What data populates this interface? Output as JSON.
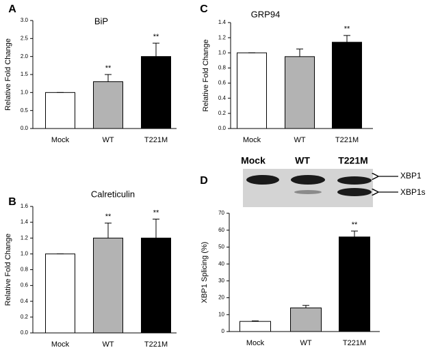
{
  "chart_data": [
    {
      "type": "bar",
      "panel_label": "A",
      "title": "BiP",
      "y_label": "Relative Fold Change",
      "categories": [
        "Mock",
        "WT",
        "T221M"
      ],
      "values": [
        1.0,
        1.3,
        2.0
      ],
      "errors": [
        0,
        0.2,
        0.37
      ],
      "annotations": [
        null,
        "**",
        "**"
      ],
      "colors": [
        "#ffffff",
        "#b3b3b3",
        "#000000"
      ],
      "ylim": [
        0,
        3.0
      ],
      "yticks": [
        {
          "value": 0,
          "label": "0.0"
        },
        {
          "value": 0.5,
          "label": "0.5"
        },
        {
          "value": 1.0,
          "label": "1.0"
        },
        {
          "value": 1.5,
          "label": "1.5"
        },
        {
          "value": 2.0,
          "label": "2.0"
        },
        {
          "value": 2.5,
          "label": "2.5"
        },
        {
          "value": 3.0,
          "label": "3.0"
        }
      ]
    },
    {
      "type": "bar",
      "panel_label": "B",
      "title": "Calreticulin",
      "y_label": "Relative Fold Change",
      "categories": [
        "Mock",
        "WT",
        "T221M"
      ],
      "values": [
        1.0,
        1.2,
        1.2
      ],
      "errors": [
        0,
        0.19,
        0.24
      ],
      "annotations": [
        null,
        "**",
        "**"
      ],
      "colors": [
        "#ffffff",
        "#b3b3b3",
        "#000000"
      ],
      "ylim": [
        0,
        1.6
      ],
      "yticks": [
        {
          "value": 0,
          "label": "0.0"
        },
        0.2,
        0.4,
        0.6,
        0.8,
        {
          "value": 1.0,
          "label": "1.0"
        },
        1.2,
        1.4,
        1.6
      ]
    },
    {
      "type": "bar",
      "panel_label": "C",
      "title": "GRP94",
      "y_label": "Relative Fold Change",
      "categories": [
        "Mock",
        "WT",
        "T221M"
      ],
      "values": [
        1.0,
        0.95,
        1.14
      ],
      "errors": [
        0,
        0.1,
        0.09
      ],
      "annotations": [
        null,
        null,
        "**"
      ],
      "colors": [
        "#ffffff",
        "#b3b3b3",
        "#000000"
      ],
      "ylim": [
        0,
        1.4
      ],
      "yticks": [
        {
          "value": 0,
          "label": "0.0"
        },
        0.2,
        0.4,
        0.6,
        0.8,
        {
          "value": 1.0,
          "label": "1.0"
        },
        1.2,
        1.4
      ]
    },
    {
      "type": "bar",
      "panel_label": "D",
      "y_label": "XBP1 Splicing (%)",
      "blot_lanes": [
        "Mock",
        "WT",
        "T221M"
      ],
      "blot_bands": [
        "XBP1",
        "XBP1s"
      ],
      "categories": [
        "Mock",
        "WT",
        "T221M"
      ],
      "values": [
        6,
        14,
        56
      ],
      "errors": [
        0.3,
        1.5,
        3.5
      ],
      "annotations": [
        null,
        null,
        "**"
      ],
      "colors": [
        "#ffffff",
        "#b3b3b3",
        "#000000"
      ],
      "ylim": [
        0,
        70
      ],
      "yticks": [
        0,
        10,
        20,
        30,
        40,
        50,
        60,
        70
      ]
    }
  ]
}
